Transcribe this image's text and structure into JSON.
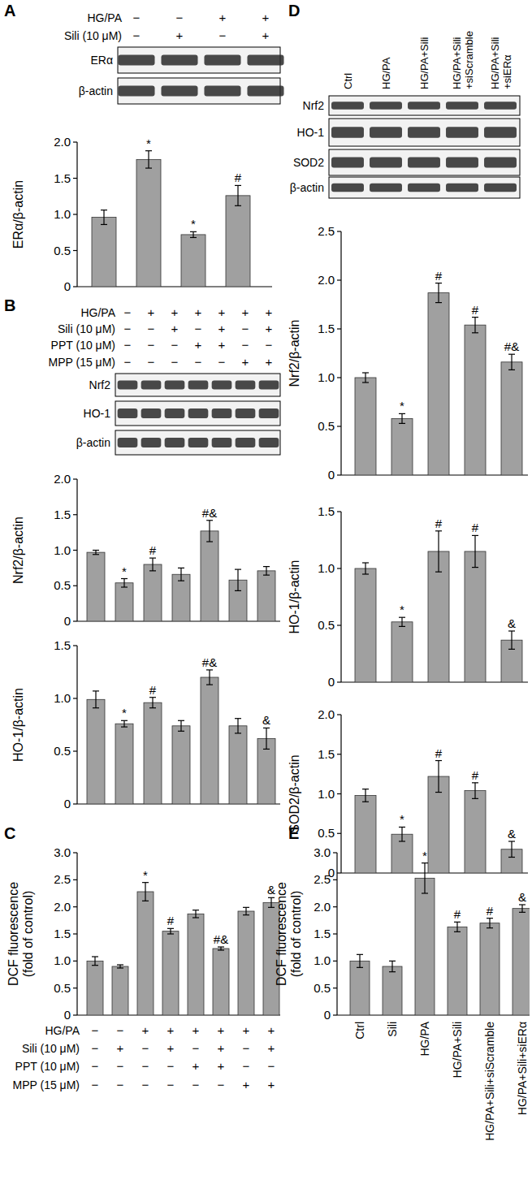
{
  "chart_data": [
    {
      "panel": "A",
      "type": "bar",
      "color": "#a0a0a0",
      "conditions": [
        {
          "label": "HG/PA",
          "values": [
            "−",
            "−",
            "+",
            "+"
          ]
        },
        {
          "label": "Sili (10 μM)",
          "values": [
            "−",
            "+",
            "−",
            "+"
          ]
        }
      ],
      "blots": [
        "ERα",
        "β-actin"
      ],
      "ylabel": "ERα/β-actin",
      "categories": [
        null,
        null,
        null,
        null
      ],
      "values": [
        0.96,
        1.76,
        0.72,
        1.26
      ],
      "errors": [
        0.1,
        0.12,
        0.04,
        0.14
      ],
      "annotations": [
        null,
        "*",
        "*",
        "#"
      ],
      "ylim": [
        0,
        2
      ],
      "yticks": [
        0,
        0.5,
        {
          "value": 1,
          "label": "1.0"
        },
        1.5,
        {
          "value": 2,
          "label": "2.0"
        }
      ]
    },
    {
      "panel": "B",
      "type": "bar",
      "color": "#a0a0a0",
      "conditions": [
        {
          "label": "HG/PA",
          "values": [
            "−",
            "+",
            "+",
            "+",
            "+",
            "+",
            "+"
          ]
        },
        {
          "label": "Sili (10 μM)",
          "values": [
            "−",
            "−",
            "+",
            "−",
            "+",
            "−",
            "+"
          ]
        },
        {
          "label": "PPT (10 μM)",
          "values": [
            "−",
            "−",
            "−",
            "+",
            "+",
            "−",
            "−"
          ]
        },
        {
          "label": "MPP (15 μM)",
          "values": [
            "−",
            "−",
            "−",
            "−",
            "−",
            "+",
            "+"
          ]
        }
      ],
      "blots": [
        "Nrf2",
        "HO-1",
        "β-actin"
      ],
      "ylabel": "Nrf2/β-actin",
      "categories": [
        null,
        null,
        null,
        null,
        null,
        null,
        null
      ],
      "values": [
        0.97,
        0.54,
        0.8,
        0.66,
        1.27,
        0.58,
        0.71
      ],
      "errors": [
        0.03,
        0.06,
        0.09,
        0.09,
        0.15,
        0.15,
        0.06
      ],
      "annotations": [
        null,
        "*",
        "#",
        null,
        "#&",
        null,
        null
      ],
      "ylim": [
        0,
        2
      ],
      "yticks": [
        0,
        0.5,
        {
          "value": 1,
          "label": "1.0"
        },
        1.5,
        {
          "value": 2,
          "label": "2.0"
        }
      ]
    },
    {
      "type": "bar",
      "color": "#a0a0a0",
      "ylabel": "HO-1/β-actin",
      "categories": [
        null,
        null,
        null,
        null,
        null,
        null,
        null
      ],
      "values": [
        0.99,
        0.76,
        0.96,
        0.74,
        1.2,
        0.74,
        0.62
      ],
      "errors": [
        0.08,
        0.03,
        0.05,
        0.05,
        0.07,
        0.07,
        0.1
      ],
      "annotations": [
        null,
        "*",
        "#",
        null,
        "#&",
        null,
        "&"
      ],
      "ylim": [
        0,
        1.5
      ],
      "yticks": [
        0,
        0.5,
        {
          "value": 1,
          "label": "1.0"
        },
        1.5
      ]
    },
    {
      "panel": "C",
      "type": "bar",
      "color": "#a0a0a0",
      "conditions": [
        {
          "label": "HG/PA",
          "values": [
            "−",
            "−",
            "+",
            "+",
            "+",
            "+",
            "+",
            "+"
          ]
        },
        {
          "label": "Sili (10 μM)",
          "values": [
            "−",
            "+",
            "−",
            "+",
            "−",
            "+",
            "−",
            "+"
          ]
        },
        {
          "label": "PPT (10 μM)",
          "values": [
            "−",
            "−",
            "−",
            "−",
            "+",
            "+",
            "−",
            "−"
          ]
        },
        {
          "label": "MPP (15 μM)",
          "values": [
            "−",
            "−",
            "−",
            "−",
            "−",
            "−",
            "+",
            "+"
          ]
        }
      ],
      "ylabel": [
        "DCF fluorescence",
        "(fold of control)"
      ],
      "categories": [
        null,
        null,
        null,
        null,
        null,
        null,
        null,
        null
      ],
      "values": [
        1.0,
        0.9,
        2.28,
        1.55,
        1.87,
        1.23,
        1.92,
        2.08
      ],
      "errors": [
        0.08,
        0.03,
        0.17,
        0.05,
        0.07,
        0.03,
        0.07,
        0.09
      ],
      "annotations": [
        null,
        null,
        "*",
        "#",
        null,
        "#&",
        null,
        "&"
      ],
      "ylim": [
        0,
        3
      ],
      "yticks": [
        0,
        0.5,
        {
          "value": 1,
          "label": "1.0"
        },
        1.5,
        {
          "value": 2,
          "label": "2.0"
        },
        2.5,
        {
          "value": 3,
          "label": "3.0"
        }
      ]
    },
    {
      "panel": "D",
      "type": "bar",
      "color": "#a0a0a0",
      "lanes": [
        [
          "Ctrl"
        ],
        [
          "HG/PA"
        ],
        [
          "HG/PA+Sili"
        ],
        [
          "HG/PA+Sili",
          "+siScramble"
        ],
        [
          "HG/PA+Sili",
          "+siERα"
        ]
      ],
      "blots": [
        "Nrf2",
        "HO-1",
        "SOD2",
        "β-actin"
      ],
      "ylabel": "Nrf2/β-actin",
      "categories": [
        null,
        null,
        null,
        null,
        null
      ],
      "values": [
        1.0,
        0.58,
        1.87,
        1.54,
        1.16
      ],
      "errors": [
        0.05,
        0.05,
        0.1,
        0.08,
        0.08
      ],
      "annotations": [
        null,
        "*",
        "#",
        "#",
        "#&"
      ],
      "ylim": [
        0,
        2.5
      ],
      "yticks": [
        0,
        0.5,
        {
          "value": 1,
          "label": "1.0"
        },
        1.5,
        {
          "value": 2,
          "label": "2.0"
        },
        2.5
      ]
    },
    {
      "type": "bar",
      "color": "#a0a0a0",
      "ylabel": "HO-1/β-actin",
      "categories": [
        null,
        null,
        null,
        null,
        null
      ],
      "values": [
        1.0,
        0.53,
        1.15,
        1.15,
        0.37
      ],
      "errors": [
        0.05,
        0.04,
        0.18,
        0.14,
        0.08
      ],
      "annotations": [
        null,
        "*",
        "#",
        "#",
        "&"
      ],
      "ylim": [
        0,
        1.5
      ],
      "yticks": [
        0,
        0.5,
        {
          "value": 1,
          "label": "1.0"
        },
        1.5
      ]
    },
    {
      "type": "bar",
      "color": "#a0a0a0",
      "ylabel": "SOD2/β-actin",
      "categories": [
        null,
        null,
        null,
        null,
        null
      ],
      "values": [
        0.98,
        0.49,
        1.22,
        1.04,
        0.3
      ],
      "errors": [
        0.08,
        0.09,
        0.2,
        0.1,
        0.1
      ],
      "annotations": [
        null,
        "*",
        "#",
        "#",
        "&"
      ],
      "ylim": [
        0,
        2
      ],
      "yticks": [
        0,
        0.5,
        {
          "value": 1,
          "label": "1.0"
        },
        1.5,
        {
          "value": 2,
          "label": "2.0"
        }
      ]
    },
    {
      "panel": "E",
      "type": "bar",
      "color": "#a0a0a0",
      "ylabel": [
        "DCF fluorescence",
        "(fold of control)"
      ],
      "categories": [
        "Ctrl",
        "Sili",
        "HG/PA",
        "HG/PA+Sili",
        "HG/PA+Sili+siScramble",
        "HG/PA+Sili+siERα"
      ],
      "values": [
        1.0,
        0.9,
        2.53,
        1.63,
        1.7,
        1.97
      ],
      "errors": [
        0.12,
        0.1,
        0.28,
        0.09,
        0.09,
        0.07
      ],
      "annotations": [
        null,
        null,
        "*",
        "#",
        "#",
        "&"
      ],
      "ylim": [
        0,
        3
      ],
      "yticks": [
        0,
        0.5,
        {
          "value": 1,
          "label": "1.0"
        },
        1.5,
        {
          "value": 2,
          "label": "2.0"
        },
        2.5,
        {
          "value": 3,
          "label": "3.0"
        }
      ]
    }
  ]
}
